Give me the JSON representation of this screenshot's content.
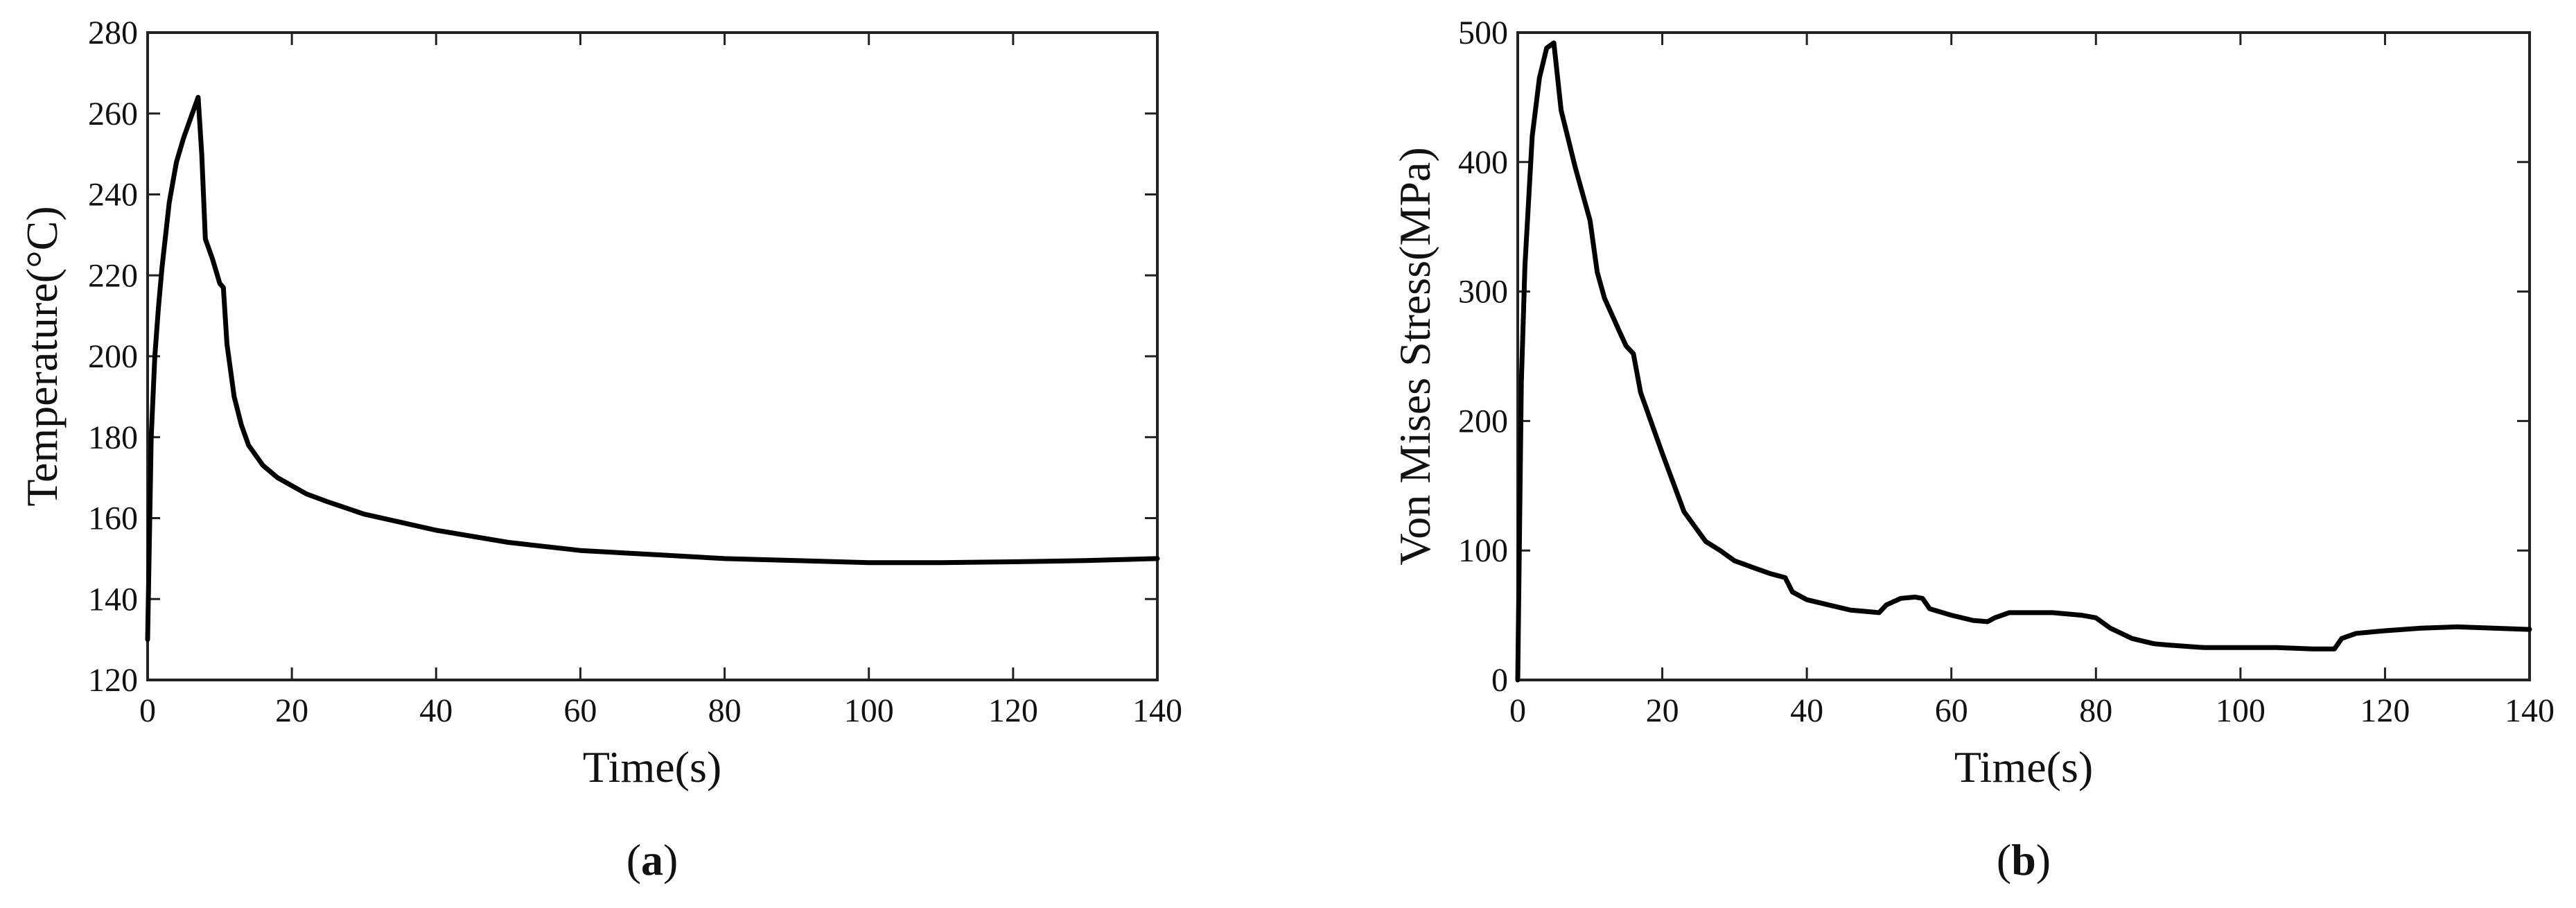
{
  "chart_data": [
    {
      "type": "line",
      "panel": "a",
      "caption_letter": "a",
      "xlabel": "Time(s)",
      "ylabel": "Temperature(°C)",
      "xlim": [
        0,
        140
      ],
      "ylim": [
        120,
        280
      ],
      "xticks": [
        0,
        20,
        40,
        60,
        80,
        100,
        120,
        140
      ],
      "yticks": [
        120,
        140,
        160,
        180,
        200,
        220,
        240,
        260,
        280
      ],
      "grid": false,
      "line_color": "#000000",
      "series": [
        {
          "x": [
            0,
            0.5,
            1,
            1.5,
            2,
            3,
            4,
            5,
            6,
            7,
            7.5,
            8,
            9,
            10,
            10.5,
            11,
            12,
            13,
            14,
            16,
            18,
            20,
            22,
            25,
            30,
            35,
            40,
            50,
            60,
            70,
            80,
            90,
            100,
            110,
            120,
            130,
            140
          ],
          "y": [
            130,
            180,
            200,
            212,
            222,
            238,
            248,
            254,
            259,
            264,
            250,
            229,
            224,
            218,
            217,
            203,
            190,
            183,
            178,
            173,
            170,
            168,
            166,
            164,
            161,
            159,
            157,
            154,
            152,
            151,
            150,
            149.5,
            149,
            149,
            149.2,
            149.5,
            150
          ]
        }
      ]
    },
    {
      "type": "line",
      "panel": "b",
      "caption_letter": "b",
      "xlabel": "Time(s)",
      "ylabel": "Von Mises Stress(MPa)",
      "xlim": [
        0,
        140
      ],
      "ylim": [
        0,
        500
      ],
      "xticks": [
        0,
        20,
        40,
        60,
        80,
        100,
        120,
        140
      ],
      "yticks": [
        0,
        100,
        200,
        300,
        400,
        500
      ],
      "grid": false,
      "line_color": "#000000",
      "series": [
        {
          "x": [
            0,
            0.5,
            1,
            2,
            3,
            4,
            5,
            6,
            8,
            10,
            11,
            12,
            14,
            15,
            16,
            17,
            20,
            23,
            26,
            28,
            30,
            33,
            35,
            37,
            38,
            40,
            43,
            46,
            48,
            50,
            51,
            53,
            55,
            56,
            57,
            60,
            63,
            65,
            66,
            68,
            70,
            74,
            78,
            80,
            82,
            85,
            88,
            90,
            95,
            100,
            105,
            110,
            112,
            113,
            114,
            116,
            120,
            125,
            130,
            135,
            140
          ],
          "y": [
            0,
            230,
            320,
            420,
            465,
            488,
            492,
            440,
            395,
            355,
            315,
            295,
            270,
            258,
            252,
            222,
            175,
            130,
            107,
            100,
            92,
            86,
            82,
            79,
            68,
            62,
            58,
            54,
            53,
            52,
            58,
            63,
            64,
            63,
            55,
            50,
            46,
            45,
            48,
            52,
            52,
            52,
            50,
            48,
            40,
            32,
            28,
            27,
            25,
            25,
            25,
            24,
            24,
            24,
            32,
            36,
            38,
            40,
            41,
            40,
            39
          ]
        }
      ]
    }
  ]
}
